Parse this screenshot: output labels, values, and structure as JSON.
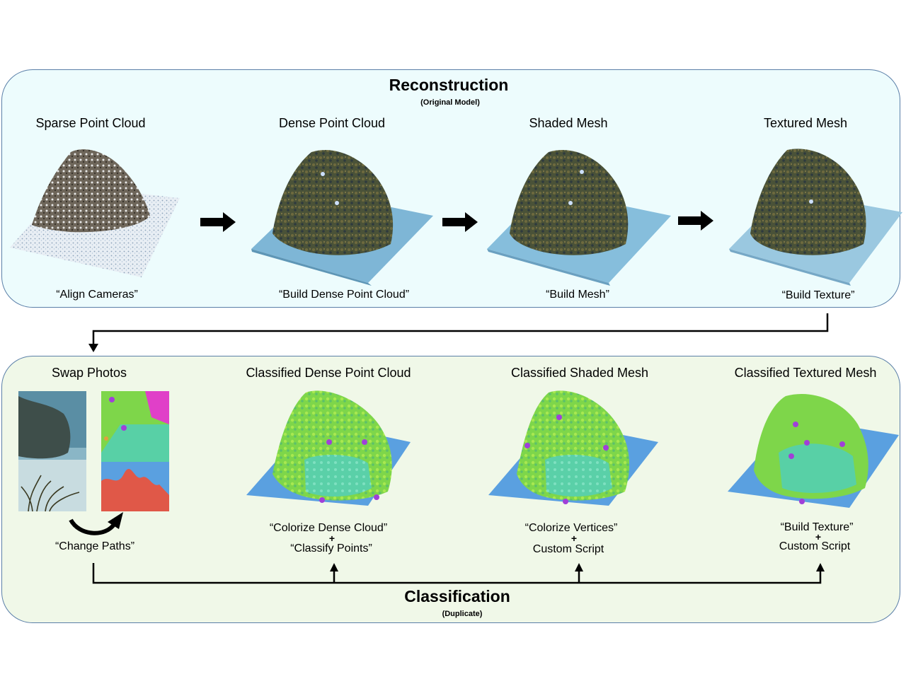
{
  "reconstruction": {
    "title": "Reconstruction",
    "subtitle": "(Original Model)",
    "stages": [
      {
        "label": "Sparse Point Cloud",
        "command": "“Align Cameras”"
      },
      {
        "label": "Dense Point Cloud",
        "command": "“Build Dense Point Cloud”"
      },
      {
        "label": "Shaded Mesh",
        "command": "“Build Mesh”"
      },
      {
        "label": "Textured Mesh",
        "command": "“Build Texture”"
      }
    ]
  },
  "classification": {
    "title": "Classification",
    "subtitle": "(Duplicate)",
    "swap": {
      "label": "Swap Photos",
      "command": "“Change Paths”"
    },
    "stages": [
      {
        "label": "Classified Dense Point Cloud",
        "command1": "“Colorize Dense Cloud”",
        "plus": "+",
        "command2": "“Classify Points”"
      },
      {
        "label": "Classified Shaded Mesh",
        "command1": "“Colorize Vertices”",
        "plus": "+",
        "command2": "Custom Script"
      },
      {
        "label": "Classified Textured Mesh",
        "command1": "“Build Texture”",
        "plus": "+",
        "command2": "Custom Script"
      }
    ]
  }
}
